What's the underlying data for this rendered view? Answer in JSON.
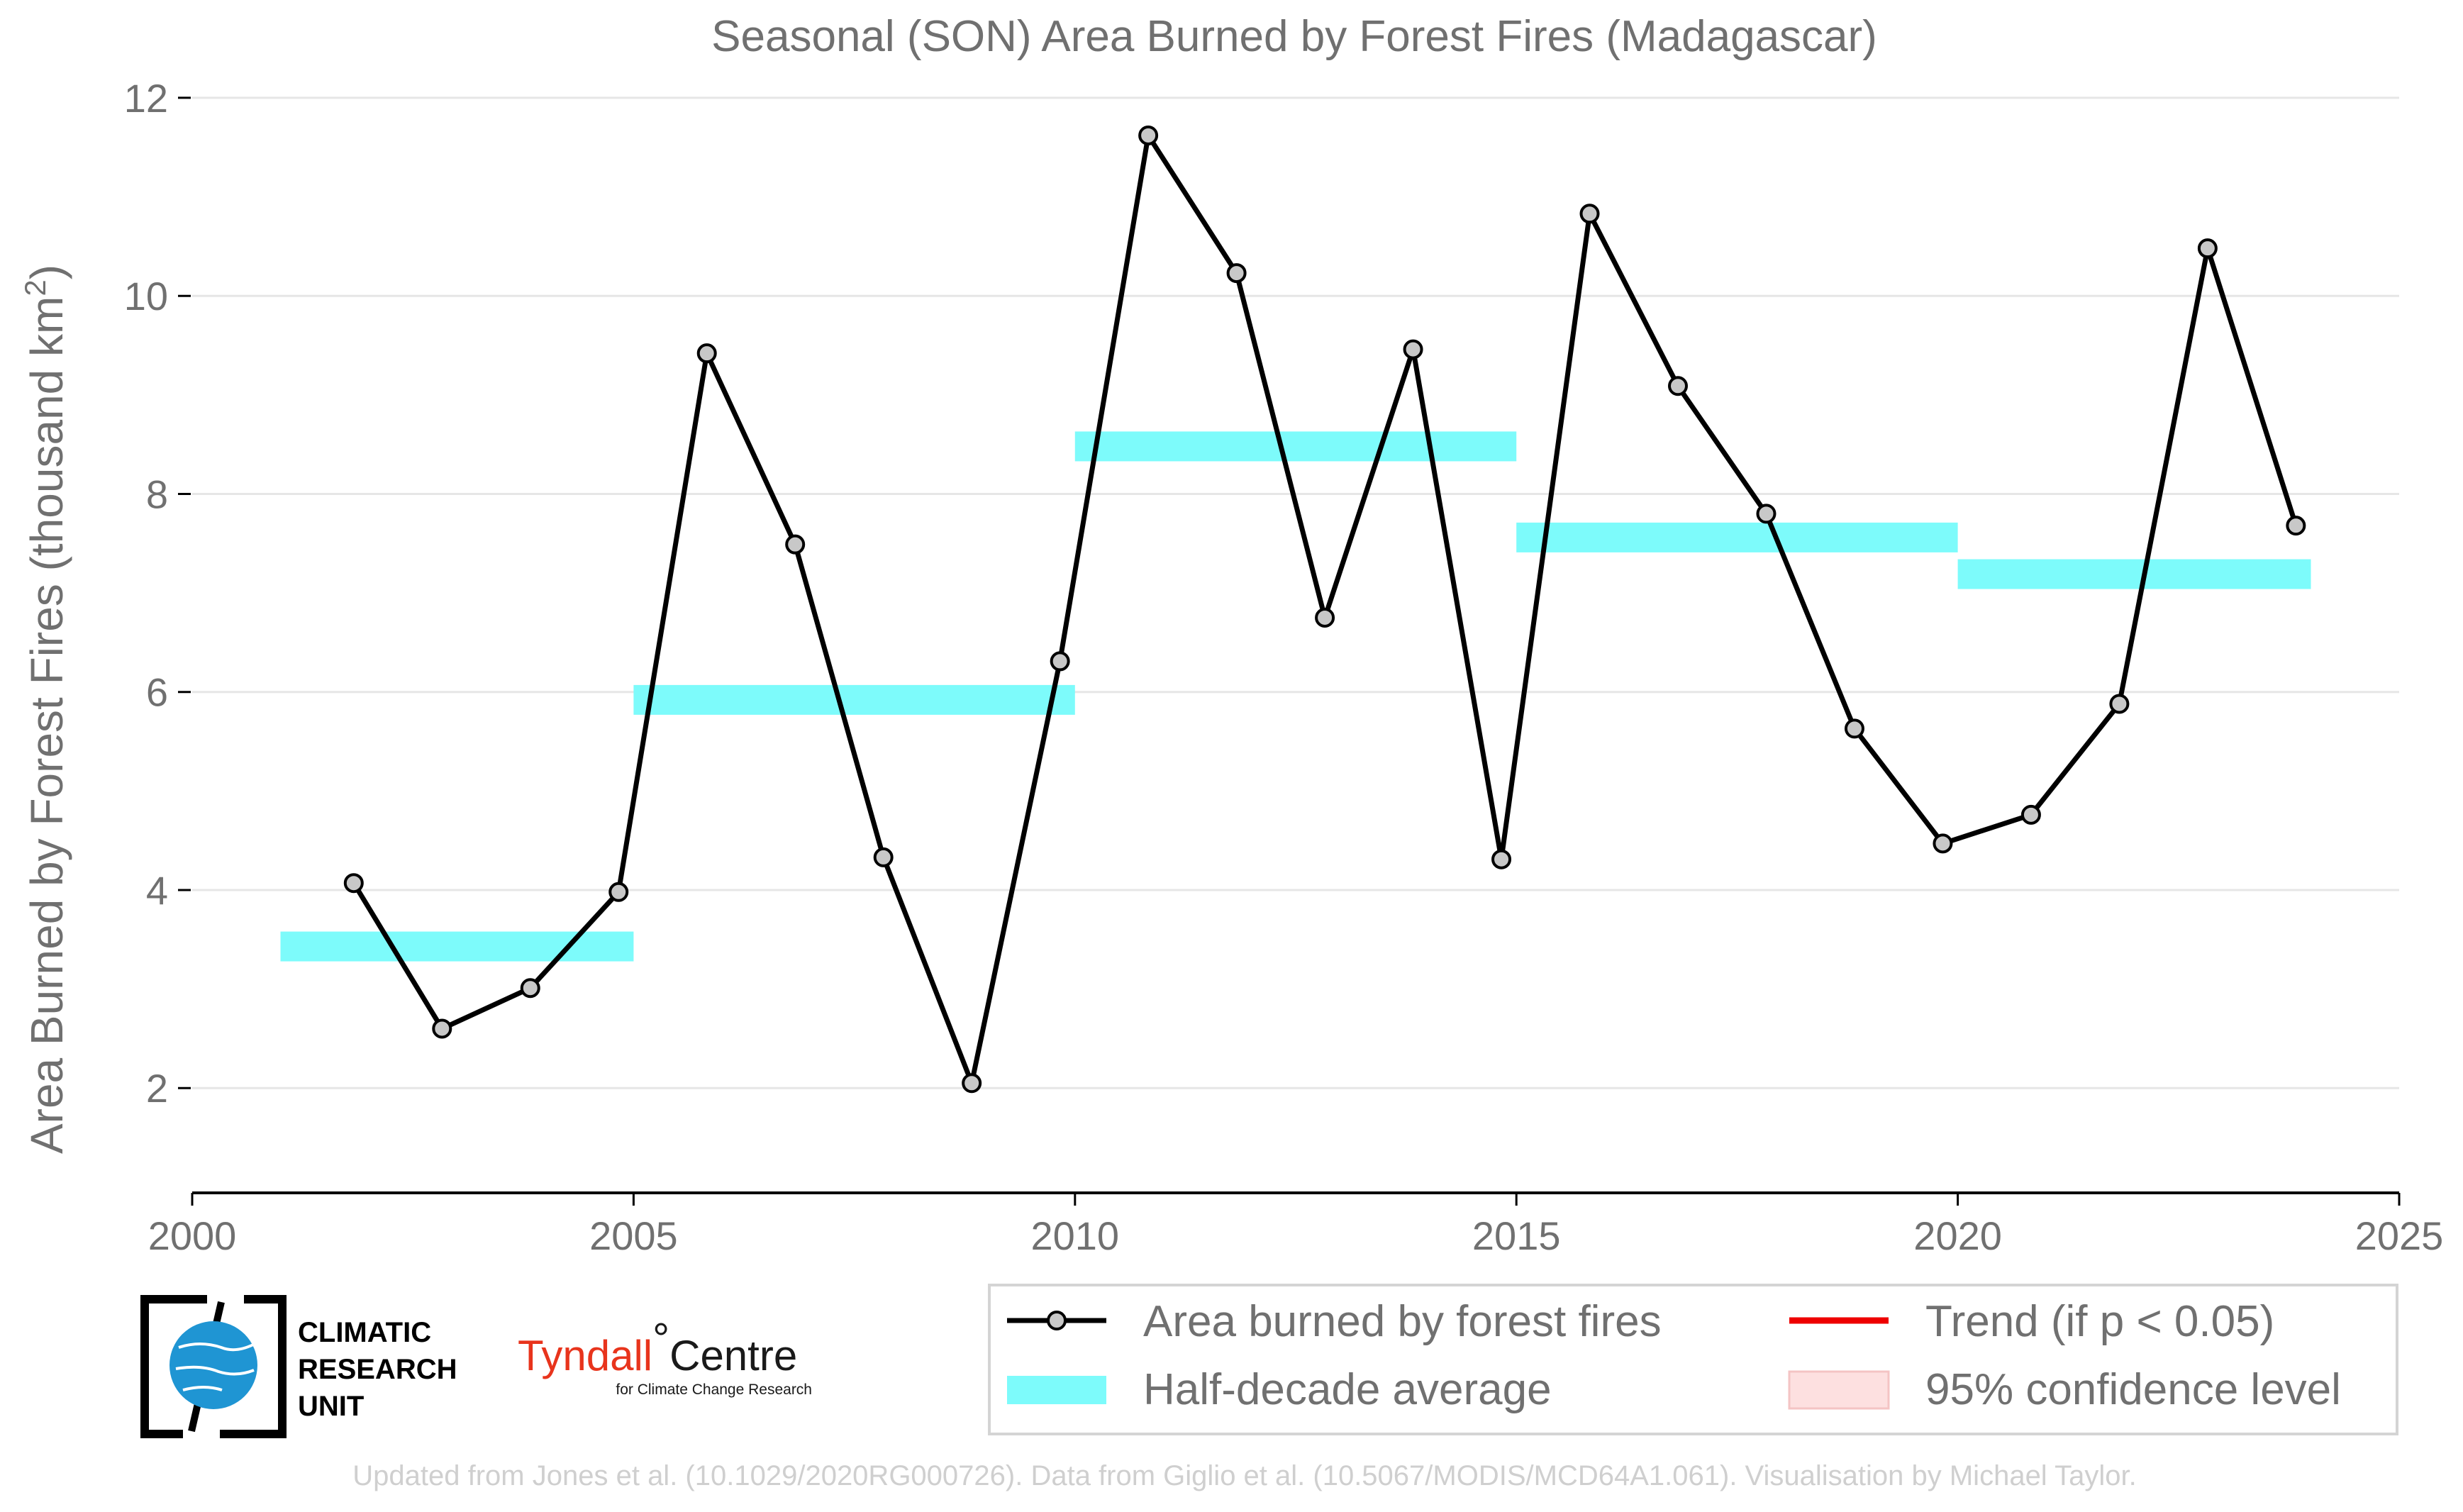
{
  "chart_data": {
    "type": "line",
    "title": "Seasonal (SON) Area Burned by Forest Fires (Madagascar)",
    "ylabel": "Area Burned by Forest Fires (thousand km",
    "ylabel_sup": "2",
    "ylabel_end": ")",
    "xlim": [
      2000,
      2025
    ],
    "ylim": [
      1.35,
      12.2
    ],
    "xticks": [
      2000,
      2005,
      2010,
      2015,
      2020,
      2025
    ],
    "yticks": [
      2,
      4,
      6,
      8,
      10,
      12
    ],
    "grid": true,
    "legend_position": "bottom-right",
    "series": [
      {
        "name": "Area burned by forest fires",
        "color": "#000000",
        "marker_fill": "#c8c8c8",
        "x": [
          2001.83,
          2002.83,
          2003.83,
          2004.83,
          2005.83,
          2006.83,
          2007.83,
          2008.83,
          2009.83,
          2010.83,
          2011.83,
          2012.83,
          2013.83,
          2014.83,
          2015.83,
          2016.83,
          2017.83,
          2018.83,
          2019.83,
          2020.83,
          2021.83,
          2022.83,
          2023.83
        ],
        "y": [
          4.07,
          2.6,
          3.01,
          3.98,
          9.42,
          7.49,
          4.33,
          2.05,
          6.31,
          11.62,
          10.23,
          6.75,
          9.46,
          4.31,
          10.83,
          9.09,
          7.8,
          5.63,
          4.47,
          4.76,
          5.88,
          10.48,
          7.68
        ]
      },
      {
        "name": "Half-decade average",
        "color": "#7dfbfb",
        "segments": [
          {
            "x0": 2001,
            "x1": 2005,
            "y": 3.43
          },
          {
            "x0": 2005,
            "x1": 2010,
            "y": 5.92
          },
          {
            "x0": 2010,
            "x1": 2015,
            "y": 8.48
          },
          {
            "x0": 2015,
            "x1": 2020,
            "y": 7.56
          },
          {
            "x0": 2020,
            "x1": 2024,
            "y": 7.19
          }
        ]
      }
    ],
    "legend": [
      {
        "label": "Area burned by forest fires",
        "kind": "line-marker",
        "color": "#000000"
      },
      {
        "label": "Trend (if p < 0.05)",
        "kind": "line",
        "color": "#ee0000"
      },
      {
        "label": "Half-decade average",
        "kind": "band",
        "color": "#7dfbfb"
      },
      {
        "label": "95% confidence level",
        "kind": "patch",
        "color": "#fde0e0"
      }
    ]
  },
  "logos": {
    "cru_line1": "CLIMATIC",
    "cru_line2": "RESEARCH",
    "cru_line3": "UNIT",
    "tyndall_name": "Tyndall",
    "tyndall_degree": "°",
    "tyndall_centre": "Centre",
    "tyndall_sub": "for Climate Change Research"
  },
  "credit": "Updated from Jones et al. (10.1029/2020RG000726). Data from Giglio et al. (10.5067/MODIS/MCD64A1.061). Visualisation by Michael Taylor."
}
